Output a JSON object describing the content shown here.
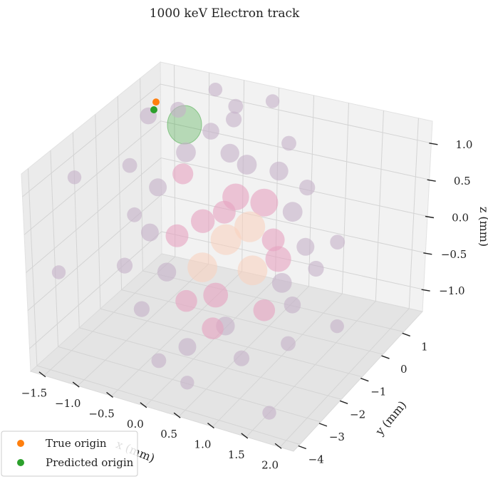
{
  "chart_data": {
    "type": "scatter",
    "title": "1000 keV Electron track",
    "xlabel": "x (mm)",
    "ylabel": "y (mm)",
    "zlabel": "z (mm)",
    "x_ticks": [
      "−1.5",
      "−1.0",
      "−0.5",
      "0.0",
      "0.5",
      "1.0",
      "1.5",
      "2.0"
    ],
    "y_ticks": [
      "1",
      "0",
      "−1",
      "−2",
      "−3",
      "−4"
    ],
    "z_ticks": [
      "1.0",
      "0.5",
      "0.0",
      "−0.5",
      "−1.0"
    ],
    "xlim": [
      -1.7,
      2.2
    ],
    "ylim": [
      -4.3,
      1.9
    ],
    "zlim": [
      -1.3,
      1.3
    ],
    "grid": true,
    "legend_position": "bottom-left",
    "colors": {
      "hits_low": "#c4b0c8",
      "hits_mid": "#e6a2c0",
      "hits_high": "#f9d0bc",
      "true_origin": "#ff7f0e",
      "predicted_origin": "#2ca02c",
      "uncertainty": "#9dcf92"
    },
    "series": [
      {
        "kind": "energy-deposits",
        "points": [
          {
            "x": 0.2,
            "y": -1.1,
            "z": 0.1,
            "e": 0.9
          },
          {
            "x": 0.45,
            "y": -0.8,
            "z": 0.25,
            "e": 0.9
          },
          {
            "x": 0.65,
            "y": -1.3,
            "z": -0.15,
            "e": 0.85
          },
          {
            "x": -0.05,
            "y": -1.4,
            "z": -0.25,
            "e": 0.85
          },
          {
            "x": 0.5,
            "y": -0.3,
            "z": 0.45,
            "e": 0.75
          },
          {
            "x": 0.15,
            "y": -0.5,
            "z": 0.5,
            "e": 0.7
          },
          {
            "x": 0.9,
            "y": -0.9,
            "z": -0.05,
            "e": 0.65
          },
          {
            "x": 0.3,
            "y": -1.9,
            "z": -0.4,
            "e": 0.6
          },
          {
            "x": -0.2,
            "y": -0.9,
            "z": 0.2,
            "e": 0.55
          },
          {
            "x": -0.45,
            "y": -1.3,
            "z": 0.05,
            "e": 0.5
          },
          {
            "x": 0.3,
            "y": -1.5,
            "z": 0.6,
            "e": 0.5
          },
          {
            "x": 0.7,
            "y": -0.5,
            "z": 0.05,
            "e": 0.5
          },
          {
            "x": 0.95,
            "y": -1.7,
            "z": -0.5,
            "e": 0.45
          },
          {
            "x": -0.1,
            "y": -2.0,
            "z": -0.55,
            "e": 0.45
          },
          {
            "x": 0.35,
            "y": -2.2,
            "z": -0.75,
            "e": 0.45
          },
          {
            "x": -0.55,
            "y": -0.7,
            "z": 0.7,
            "e": 0.4
          },
          {
            "x": -0.6,
            "y": -0.4,
            "z": 0.9,
            "e": 0.35
          },
          {
            "x": 0.15,
            "y": 0.0,
            "z": 0.8,
            "e": 0.35
          },
          {
            "x": 0.85,
            "y": -0.1,
            "z": 0.35,
            "e": 0.35
          },
          {
            "x": 1.05,
            "y": -1.2,
            "z": -0.25,
            "e": 0.35
          },
          {
            "x": -0.35,
            "y": -2.1,
            "z": -0.2,
            "e": 0.3
          },
          {
            "x": 0.6,
            "y": -2.4,
            "z": -0.6,
            "e": 0.3
          },
          {
            "x": 0.0,
            "y": -0.3,
            "z": 1.0,
            "e": 0.3
          },
          {
            "x": 0.55,
            "y": 0.2,
            "z": 0.75,
            "e": 0.3
          },
          {
            "x": 1.2,
            "y": -0.6,
            "z": 0.1,
            "e": 0.25
          },
          {
            "x": -0.75,
            "y": -1.6,
            "z": 0.1,
            "e": 0.25
          },
          {
            "x": -0.85,
            "y": -0.9,
            "z": 0.5,
            "e": 0.25
          },
          {
            "x": 0.1,
            "y": -2.6,
            "z": -0.95,
            "e": 0.25
          },
          {
            "x": 1.3,
            "y": -1.5,
            "z": -0.4,
            "e": 0.2
          },
          {
            "x": -0.4,
            "y": 0.1,
            "z": 1.1,
            "e": 0.2
          },
          {
            "x": -1.2,
            "y": -0.2,
            "z": 1.2,
            "e": 0.2
          },
          {
            "x": -0.9,
            "y": 0.2,
            "z": 1.25,
            "e": 0.15
          },
          {
            "x": -0.2,
            "y": 0.5,
            "z": 1.2,
            "e": 0.15
          },
          {
            "x": 0.9,
            "y": 0.4,
            "z": 0.55,
            "e": 0.15
          },
          {
            "x": 1.45,
            "y": -0.9,
            "z": -0.05,
            "e": 0.15
          },
          {
            "x": -1.0,
            "y": -2.0,
            "z": -0.3,
            "e": 0.15
          },
          {
            "x": 0.9,
            "y": -2.6,
            "z": -0.9,
            "e": 0.15
          },
          {
            "x": -0.6,
            "y": -2.5,
            "z": -0.65,
            "e": 0.15
          },
          {
            "x": -1.35,
            "y": -0.6,
            "z": 0.6,
            "e": 0.1
          },
          {
            "x": -0.3,
            "y": 0.9,
            "z": 1.25,
            "e": 0.1
          },
          {
            "x": 0.5,
            "y": 0.8,
            "z": 0.95,
            "e": 0.1
          },
          {
            "x": 1.6,
            "y": -0.4,
            "z": 0.2,
            "e": 0.1
          },
          {
            "x": -1.1,
            "y": -1.2,
            "z": 0.15,
            "e": 0.1
          },
          {
            "x": 1.4,
            "y": -2.0,
            "z": -0.75,
            "e": 0.1
          },
          {
            "x": -0.2,
            "y": -3.0,
            "z": -1.1,
            "e": 0.1
          },
          {
            "x": 0.25,
            "y": -3.1,
            "z": -1.25,
            "e": 0.05
          },
          {
            "x": -1.45,
            "y": -3.6,
            "z": -0.1,
            "e": 0.05
          },
          {
            "x": -1.6,
            "y": -2.3,
            "z": 0.8,
            "e": 0.05
          },
          {
            "x": 1.9,
            "y": -1.3,
            "z": -0.6,
            "e": 0.05
          },
          {
            "x": 1.5,
            "y": -3.2,
            "z": -1.3,
            "e": 0.05
          },
          {
            "x": -0.75,
            "y": 1.4,
            "z": 1.25,
            "e": 0.05
          },
          {
            "x": 0.1,
            "y": 1.3,
            "z": 1.3,
            "e": 0.05
          }
        ]
      },
      {
        "name": "True origin",
        "x": -1.2,
        "y": 0.15,
        "z": 1.3
      },
      {
        "name": "Predicted origin",
        "x": -1.2,
        "y": 0.05,
        "z": 1.22
      }
    ]
  }
}
